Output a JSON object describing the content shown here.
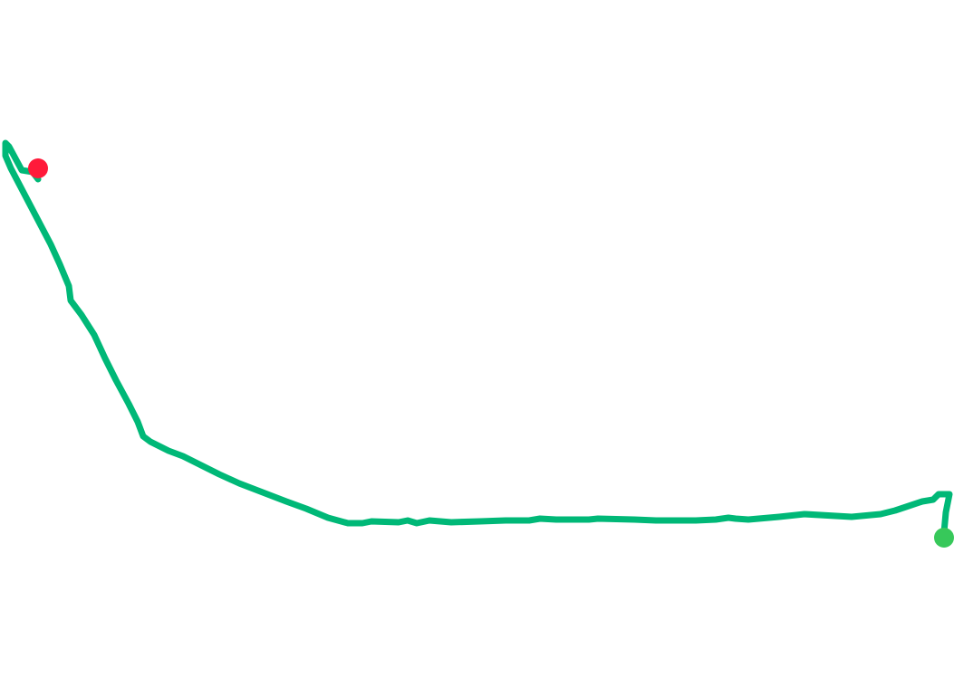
{
  "map": {
    "background_color": "#ffffff",
    "route": {
      "color": "#00b877"
    },
    "start_marker": {
      "color": "#37c85a",
      "icon": "start-point-dot"
    },
    "end_marker": {
      "color": "#ff1a3a",
      "icon": "end-point-dot"
    }
  }
}
